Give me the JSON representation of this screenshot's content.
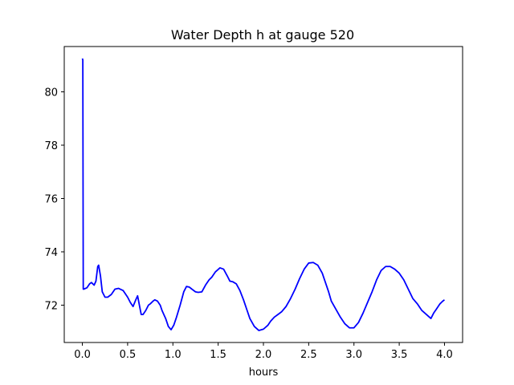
{
  "chart_data": {
    "type": "line",
    "title": "Water Depth h at gauge 520",
    "xlabel": "hours",
    "ylabel": "",
    "xlim": [
      -0.2,
      4.2
    ],
    "ylim": [
      70.6,
      81.7
    ],
    "xticks": [
      0.0,
      0.5,
      1.0,
      1.5,
      2.0,
      2.5,
      3.0,
      3.5,
      4.0
    ],
    "xtick_labels": [
      "0.0",
      "0.5",
      "1.0",
      "1.5",
      "2.0",
      "2.5",
      "3.0",
      "3.5",
      "4.0"
    ],
    "yticks": [
      72,
      74,
      76,
      78,
      80
    ],
    "ytick_labels": [
      "72",
      "74",
      "76",
      "78",
      "80"
    ],
    "grid": false,
    "series": [
      {
        "color": "#0000ff",
        "x": [
          0.0,
          0.005,
          0.01,
          0.015,
          0.05,
          0.08,
          0.1,
          0.13,
          0.15,
          0.17,
          0.18,
          0.2,
          0.22,
          0.25,
          0.28,
          0.32,
          0.36,
          0.4,
          0.45,
          0.5,
          0.53,
          0.56,
          0.59,
          0.61,
          0.63,
          0.65,
          0.67,
          0.7,
          0.73,
          0.75,
          0.78,
          0.8,
          0.83,
          0.86,
          0.88,
          0.92,
          0.95,
          0.98,
          1.01,
          1.04,
          1.08,
          1.12,
          1.15,
          1.18,
          1.21,
          1.25,
          1.28,
          1.32,
          1.36,
          1.4,
          1.43,
          1.47,
          1.52,
          1.56,
          1.6,
          1.63,
          1.66,
          1.7,
          1.74,
          1.78,
          1.82,
          1.85,
          1.9,
          1.95,
          2.0,
          2.05,
          2.08,
          2.12,
          2.16,
          2.2,
          2.25,
          2.3,
          2.35,
          2.4,
          2.45,
          2.5,
          2.55,
          2.6,
          2.65,
          2.68,
          2.72,
          2.75,
          2.8,
          2.85,
          2.9,
          2.95,
          3.0,
          3.05,
          3.1,
          3.15,
          3.2,
          3.25,
          3.3,
          3.35,
          3.4,
          3.45,
          3.5,
          3.55,
          3.6,
          3.65,
          3.7,
          3.75,
          3.8,
          3.85,
          3.88,
          3.91,
          3.93,
          3.95,
          3.98,
          4.0
        ],
        "y": [
          81.25,
          81.2,
          72.6,
          72.6,
          72.65,
          72.8,
          72.85,
          72.75,
          72.9,
          73.45,
          73.5,
          73.1,
          72.5,
          72.3,
          72.3,
          72.4,
          72.6,
          72.63,
          72.55,
          72.3,
          72.1,
          71.95,
          72.2,
          72.35,
          72.0,
          71.65,
          71.65,
          71.8,
          72.0,
          72.05,
          72.15,
          72.2,
          72.15,
          72.0,
          71.8,
          71.5,
          71.2,
          71.08,
          71.25,
          71.55,
          72.0,
          72.5,
          72.7,
          72.68,
          72.6,
          72.5,
          72.48,
          72.5,
          72.75,
          72.95,
          73.05,
          73.25,
          73.4,
          73.35,
          73.1,
          72.9,
          72.88,
          72.8,
          72.55,
          72.2,
          71.8,
          71.5,
          71.2,
          71.05,
          71.1,
          71.25,
          71.4,
          71.55,
          71.65,
          71.75,
          71.95,
          72.25,
          72.6,
          73.0,
          73.35,
          73.58,
          73.6,
          73.5,
          73.2,
          72.9,
          72.5,
          72.15,
          71.85,
          71.55,
          71.3,
          71.15,
          71.15,
          71.35,
          71.7,
          72.1,
          72.5,
          72.95,
          73.3,
          73.45,
          73.45,
          73.35,
          73.2,
          72.95,
          72.6,
          72.25,
          72.05,
          71.8,
          71.65,
          71.5,
          71.7,
          71.85,
          71.95,
          72.05,
          72.15,
          72.2
        ]
      }
    ]
  }
}
